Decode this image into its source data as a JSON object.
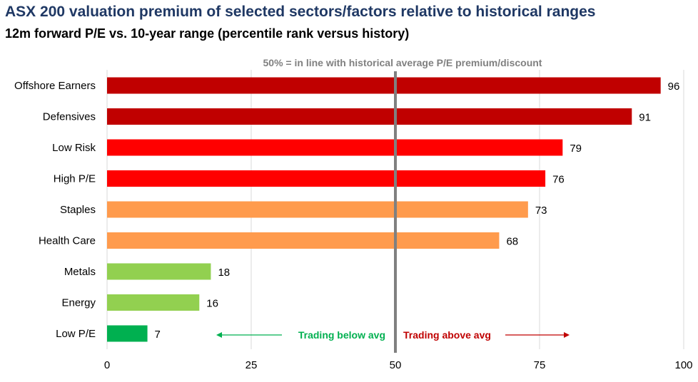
{
  "chart_data": {
    "type": "bar",
    "orientation": "horizontal",
    "title": "ASX 200 valuation premium of selected sectors/factors relative to historical ranges",
    "subtitle": "12m forward P/E vs. 10-year range (percentile rank versus history)",
    "reference_line": {
      "value": 50,
      "label": "50% = in line with historical average P/E premium/discount"
    },
    "categories": [
      "Offshore Earners",
      "Defensives",
      "Low Risk",
      "High P/E",
      "Staples",
      "Health Care",
      "Metals",
      "Energy",
      "Low P/E"
    ],
    "values": [
      96,
      91,
      79,
      76,
      73,
      68,
      18,
      16,
      7
    ],
    "colors": [
      "#c00000",
      "#c00000",
      "#ff0000",
      "#ff0000",
      "#ff9b4d",
      "#ff9b4d",
      "#92d050",
      "#92d050",
      "#00b050"
    ],
    "xlim": [
      0,
      100
    ],
    "xticks": [
      0,
      25,
      50,
      75,
      100
    ],
    "annotations": [
      {
        "text": "Trading below avg",
        "color": "#00b050",
        "direction": "left"
      },
      {
        "text": "Trading above avg",
        "color": "#c00000",
        "direction": "right"
      }
    ],
    "grid": true
  }
}
